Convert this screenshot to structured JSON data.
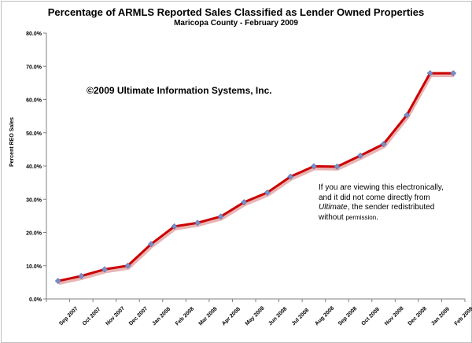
{
  "chart_data": {
    "type": "line",
    "title": "Percentage of ARMLS Reported Sales Classified as Lender Owned Properties",
    "subtitle": "Maricopa County - February 2009",
    "ylabel": "Percent REO Sales",
    "xlabel": "",
    "ylim": [
      0,
      80
    ],
    "yticks": [
      "0.0%",
      "10.0%",
      "20.0%",
      "30.0%",
      "40.0%",
      "50.0%",
      "60.0%",
      "70.0%",
      "80.0%"
    ],
    "grid": false,
    "categories": [
      "Sep 2007",
      "Oct 2007",
      "Nov 2007",
      "Dec 2007",
      "Jan 2008",
      "Feb 2008",
      "Mar 2008",
      "Apr 2008",
      "May 2008",
      "Jun 2008",
      "Jul 2008",
      "Aug 2008",
      "Sep 2008",
      "Oct 2008",
      "Nov 2008",
      "Dec 2008",
      "Jan 2009",
      "Feb 2009"
    ],
    "series": [
      {
        "values": [
          5.4,
          6.9,
          8.9,
          10.0,
          16.5,
          21.8,
          22.9,
          24.8,
          29.1,
          32.0,
          36.8,
          39.9,
          39.8,
          43.1,
          46.6,
          55.3,
          67.9,
          67.9
        ]
      }
    ],
    "line_color": "#cc0000",
    "marker_color": "#7b8ec8",
    "annotations": {
      "copyright": "©2009 Ultimate Information Systems, Inc.",
      "notice_line1": "If you are viewing this electronically,",
      "notice_line2": "and it did not come directly from",
      "notice_line3_italic": "Ultimate",
      "notice_line3_rest": ", the sender redistributed",
      "notice_line4": "without ",
      "notice_line4_small": "permission",
      "notice_line4_end": "."
    }
  }
}
